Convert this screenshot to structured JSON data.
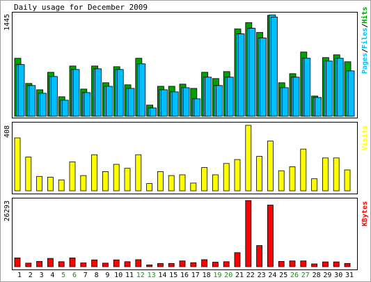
{
  "chart_data": {
    "type": "bar",
    "title": "Daily usage for December 2009",
    "categories": [
      "1",
      "2",
      "3",
      "4",
      "5",
      "6",
      "7",
      "8",
      "9",
      "10",
      "11",
      "12",
      "13",
      "14",
      "15",
      "16",
      "17",
      "18",
      "19",
      "20",
      "21",
      "22",
      "23",
      "24",
      "25",
      "26",
      "27",
      "28",
      "29",
      "30",
      "31"
    ],
    "weekend_days": [
      "5",
      "6",
      "12",
      "13",
      "19",
      "20",
      "26",
      "27"
    ],
    "panels": [
      {
        "name": "traffic",
        "max_label": "1445",
        "ylim": [
          0,
          1445
        ],
        "legend": [
          "Pages",
          "Files",
          "Hits"
        ],
        "series": [
          {
            "name": "Hits",
            "color": "#00a000",
            "values": [
              830,
              470,
              380,
              630,
              280,
              720,
              390,
              720,
              480,
              710,
              450,
              830,
              160,
              430,
              430,
              460,
              400,
              630,
              540,
              640,
              1250,
              1340,
              1200,
              1445,
              480,
              610,
              920,
              290,
              840,
              880,
              780
            ]
          },
          {
            "name": "Files",
            "color": "#00bfff",
            "values": [
              740,
              440,
              330,
              570,
              230,
              670,
              340,
              680,
              430,
              670,
              400,
              750,
              120,
              380,
              350,
              410,
              250,
              560,
              440,
              560,
              1180,
              1260,
              1120,
              1450,
              410,
              560,
              830,
              270,
              790,
              830,
              650
            ]
          },
          {
            "name": "Pages",
            "color": "#00bfff",
            "values": [
              740,
              440,
              330,
              570,
              230,
              670,
              340,
              680,
              430,
              670,
              400,
              750,
              120,
              380,
              350,
              410,
              250,
              560,
              440,
              560,
              1180,
              1260,
              1120,
              1420,
              410,
              560,
              830,
              270,
              790,
              830,
              650
            ]
          }
        ]
      },
      {
        "name": "visits",
        "max_label": "408",
        "ylim": [
          0,
          408
        ],
        "legend": [
          "Visits"
        ],
        "series": [
          {
            "name": "Visits",
            "color": "#ffff00",
            "values": [
              330,
              210,
              90,
              85,
              68,
              180,
              95,
              225,
              120,
              165,
              140,
              225,
              45,
              120,
              95,
              100,
              48,
              145,
              100,
              170,
              195,
              408,
              215,
              310,
              125,
              150,
              260,
              75,
              205,
              205,
              130
            ]
          }
        ]
      },
      {
        "name": "kbytes",
        "max_label": "26293",
        "ylim": [
          0,
          26293
        ],
        "legend": [
          "KBytes"
        ],
        "series": [
          {
            "name": "KBytes",
            "color": "#ff0000",
            "values": [
              3500,
              1400,
              2100,
              3300,
              2000,
              3500,
              1500,
              2700,
              1400,
              2700,
              2000,
              2800,
              700,
              1300,
              1300,
              2300,
              1600,
              2800,
              1800,
              2000,
              5600,
              26293,
              8400,
              24500,
              2100,
              2300,
              2300,
              1100,
              1900,
              1900,
              1300
            ]
          }
        ]
      }
    ]
  }
}
